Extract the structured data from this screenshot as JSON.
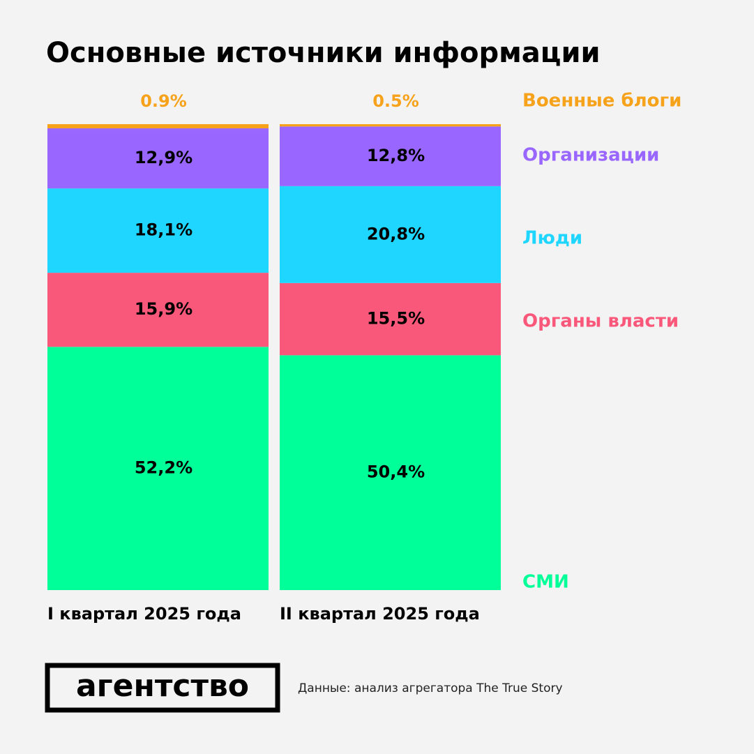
{
  "chart_data": {
    "type": "stacked_bar",
    "title": "Основные источники информации",
    "categories": [
      "I квартал 2025 года",
      "II квартал 2025 года"
    ],
    "series": [
      {
        "name": "СМИ",
        "color": "#00ff99",
        "values": [
          52.2,
          50.4
        ],
        "value_labels": [
          "52,2%",
          "50,4%"
        ]
      },
      {
        "name": "Органы власти",
        "color": "#fa587a",
        "values": [
          15.9,
          15.5
        ],
        "value_labels": [
          "15,9%",
          "15,5%"
        ]
      },
      {
        "name": "Люди",
        "color": "#1ed6ff",
        "values": [
          18.1,
          20.8
        ],
        "value_labels": [
          "18,1%",
          "20,8%"
        ]
      },
      {
        "name": "Организации",
        "color": "#9966ff",
        "values": [
          12.9,
          12.8
        ],
        "value_labels": [
          "12,9%",
          "12,8%"
        ]
      },
      {
        "name": "Военные блоги",
        "color": "#f7a21b",
        "values": [
          0.9,
          0.5
        ],
        "value_labels": [
          "0.9%",
          "0.5%"
        ]
      }
    ]
  },
  "logo": "агентство",
  "source": "Данные: анализ агрегатора The True Story"
}
